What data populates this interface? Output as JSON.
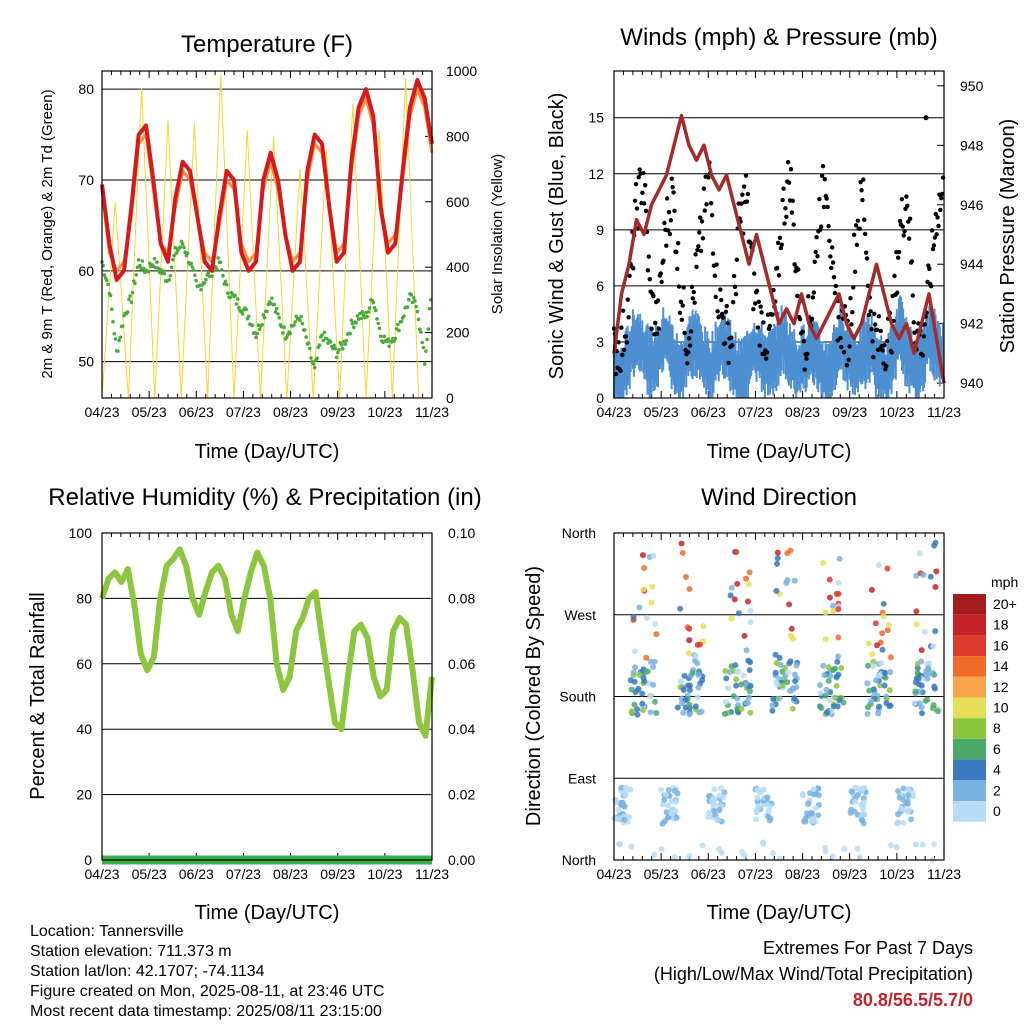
{
  "chart_data": [
    {
      "type": "line",
      "title": "Temperature (F)",
      "xlabel": "Time (Day/UTC)",
      "ylabel": "2m & 9m T (Red, Orange) & 2m Td (Green)",
      "y2label": "Solar Insolation (Yellow)",
      "x_ticks": [
        "04/23",
        "05/23",
        "06/23",
        "07/23",
        "08/23",
        "09/23",
        "10/23",
        "11/23"
      ],
      "y_ticks": [
        50,
        60,
        70,
        80
      ],
      "y2_ticks": [
        0,
        200,
        400,
        600,
        800,
        1000
      ],
      "ylim": [
        46,
        82
      ],
      "y2lim": [
        0,
        1000
      ],
      "series": [
        {
          "name": "2m T",
          "color": "#d7191c",
          "values": [
            69.5,
            63,
            59,
            60,
            67,
            75,
            76,
            70,
            63,
            61,
            68,
            72,
            71,
            66,
            61,
            60,
            66,
            71,
            70,
            62,
            60,
            61,
            70,
            73,
            70,
            64,
            60,
            61,
            71,
            75,
            74,
            67,
            61,
            62,
            72,
            78,
            80,
            77,
            67,
            62,
            63,
            71,
            78,
            81,
            79,
            74
          ]
        },
        {
          "name": "9m T",
          "color": "#fd8d3c",
          "values": [
            69,
            62,
            60,
            61,
            66,
            74,
            75,
            69,
            63,
            62,
            67,
            71,
            70,
            66,
            62,
            61,
            65,
            70,
            69,
            63,
            61,
            62,
            69,
            72,
            69,
            64,
            61,
            62,
            70,
            74,
            73,
            67,
            62,
            63,
            71,
            77,
            79,
            76,
            67,
            63,
            64,
            70,
            77,
            80,
            78,
            73
          ]
        },
        {
          "name": "2m Td",
          "color": "#4aaa3c",
          "values": [
            61,
            58,
            51,
            55,
            57,
            61,
            60,
            61,
            60,
            59,
            62,
            63,
            61,
            58,
            59,
            60,
            61,
            58,
            57,
            56,
            55,
            53,
            55,
            57,
            55,
            53,
            54,
            55,
            52,
            49,
            53,
            52,
            51,
            52,
            54,
            55,
            55,
            57,
            53,
            52,
            53,
            55,
            57,
            56,
            50,
            58
          ]
        },
        {
          "name": "Solar Insolation",
          "color": "#f1d832",
          "values": [
            0,
            600,
            0,
            950,
            0,
            850,
            0,
            840,
            0,
            990,
            0,
            820,
            0,
            800,
            0,
            700,
            0,
            760,
            0,
            900,
            0,
            820,
            0,
            980,
            0,
            0
          ]
        }
      ]
    },
    {
      "type": "scatter",
      "title": "Winds (mph) & Pressure (mb)",
      "xlabel": "Time (Day/UTC)",
      "ylabel": "Sonic Wind & Gust (Blue, Black)",
      "y2label": "Station Pressure (Maroon)",
      "x_ticks": [
        "04/23",
        "05/23",
        "06/23",
        "07/23",
        "08/23",
        "09/23",
        "10/23",
        "11/23"
      ],
      "y_ticks": [
        0,
        3,
        6,
        9,
        12,
        15
      ],
      "y2_ticks": [
        940,
        942,
        944,
        946,
        948,
        950
      ],
      "ylim": [
        0,
        17.5
      ],
      "y2lim": [
        939.5,
        950.5
      ],
      "series": [
        {
          "name": "Wind",
          "color": "#4d8fd1",
          "values": [
            2,
            1.8,
            3,
            4,
            3.5,
            2.5,
            3,
            4,
            3,
            2,
            3.2,
            4,
            3,
            2.2,
            3,
            3.8,
            3,
            2,
            2.5,
            3.5,
            3,
            2.5,
            3,
            4,
            3,
            2.3,
            3,
            3.5,
            2.6,
            2,
            3,
            4,
            3,
            2.5,
            3,
            3.6,
            2.4,
            2,
            3,
            4.5,
            3,
            2.2,
            3,
            4,
            3.5,
            3
          ]
        },
        {
          "name": "Gust",
          "color": "#000000",
          "values": [
            2.5,
            2.8,
            5,
            10,
            12,
            5,
            4,
            9,
            11,
            6,
            3,
            6,
            9,
            12,
            6,
            4,
            3,
            9,
            11,
            6,
            4,
            3,
            5,
            10,
            12,
            6,
            3,
            5,
            10,
            12,
            5,
            4,
            3,
            9,
            11,
            4,
            3,
            3,
            4,
            9,
            11,
            4,
            3,
            6,
            10,
            11
          ]
        },
        {
          "name": "Station Pressure",
          "color": "#a52a2a",
          "values": [
            941,
            943,
            944,
            945.5,
            945,
            946,
            946.5,
            947,
            948,
            949,
            948,
            947.5,
            948,
            947,
            946.5,
            947,
            946,
            945,
            944,
            945,
            944,
            943,
            942,
            942.5,
            942,
            943,
            942,
            941.5,
            942,
            942.5,
            943,
            942,
            941.5,
            942,
            943,
            944,
            943,
            942,
            941.5,
            942,
            941,
            942,
            943,
            941.5,
            940
          ]
        }
      ]
    },
    {
      "type": "line",
      "title": "Relative Humidity (%) & Precipitation (in)",
      "xlabel": "Time (Day/UTC)",
      "ylabel": "Percent & Total Rainfall",
      "x_ticks": [
        "04/23",
        "05/23",
        "06/23",
        "07/23",
        "08/23",
        "09/23",
        "10/23",
        "11/23"
      ],
      "y_ticks": [
        0,
        20,
        40,
        60,
        80,
        100
      ],
      "y2_ticks": [
        "0.00",
        "0.02",
        "0.04",
        "0.06",
        "0.08",
        "0.10"
      ],
      "ylim": [
        0,
        100
      ],
      "y2lim": [
        0,
        0.1
      ],
      "series": [
        {
          "name": "Relative Humidity",
          "color": "#8cc63f",
          "values": [
            80,
            86,
            88,
            85,
            89,
            78,
            63,
            58,
            62,
            80,
            90,
            92,
            95,
            90,
            80,
            75,
            82,
            88,
            90,
            86,
            75,
            70,
            80,
            88,
            94,
            90,
            80,
            60,
            52,
            56,
            70,
            74,
            80,
            82,
            68,
            55,
            42,
            40,
            56,
            70,
            72,
            68,
            56,
            50,
            52,
            70,
            74,
            72,
            58,
            42,
            38,
            56
          ]
        },
        {
          "name": "Total Precipitation",
          "color": "#3cae49",
          "values": [
            0,
            0
          ]
        }
      ]
    },
    {
      "type": "scatter",
      "title": "Wind Direction",
      "xlabel": "Time (Day/UTC)",
      "ylabel": "Direction (Colored By Speed)",
      "x_ticks": [
        "04/23",
        "05/23",
        "06/23",
        "07/23",
        "08/23",
        "09/23",
        "10/23",
        "11/23"
      ],
      "y_ticks": [
        "North",
        "East",
        "South",
        "West",
        "North"
      ],
      "legend": {
        "title": "mph",
        "labels": [
          "20+",
          "18",
          "16",
          "14",
          "12",
          "10",
          "8",
          "6",
          "4",
          "2",
          "0"
        ],
        "colors": [
          "#a41b1f",
          "#c4232a",
          "#dd3b2d",
          "#f06b2c",
          "#f8a54a",
          "#e7de57",
          "#8cc63f",
          "#4ba96a",
          "#3a79bd",
          "#77b2e2",
          "#b7dcf4"
        ]
      }
    }
  ],
  "info": {
    "location": "Location: Tannersville",
    "elevation": "Station elevation: 711.373 m",
    "latlon": "Station lat/lon: 42.1707; -74.1134",
    "created": "Figure created on Mon, 2025-08-11, at 23:46 UTC",
    "recent": "Most recent data timestamp: 2025/08/11 23:15:00"
  },
  "extremes": {
    "line1": "Extremes For Past 7 Days",
    "line2": "(High/Low/Max Wind/Total Precipitation)",
    "value": "80.8/56.5/5.7/0"
  }
}
